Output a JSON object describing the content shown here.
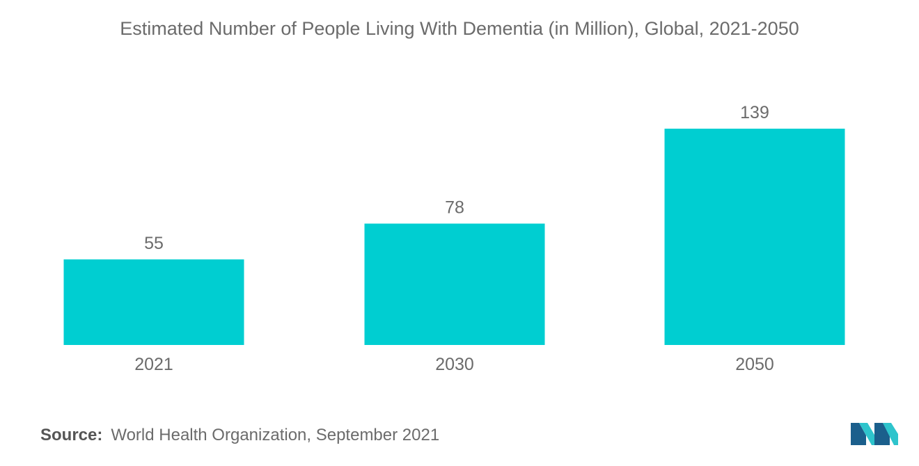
{
  "title": "Estimated Number of People Living With Dementia (in Million), Global, 2021-2050",
  "source": {
    "label": "Source:",
    "text": "World Health Organization, September 2021"
  },
  "colors": {
    "bar": "#00CED1",
    "text": "#6b6b6b",
    "logo_dark": "#1B5F8C",
    "logo_light": "#2EC4CC"
  },
  "chart_data": {
    "type": "bar",
    "title": "Estimated Number of People Living With Dementia (in Million), Global, 2021-2050",
    "categories": [
      "2021",
      "2030",
      "2050"
    ],
    "values": [
      55,
      78,
      139
    ],
    "data_labels": [
      "55",
      "78",
      "139"
    ],
    "xlabel": "",
    "ylabel": "",
    "ylim": [
      0,
      139
    ],
    "grid": false,
    "legend": "none"
  }
}
